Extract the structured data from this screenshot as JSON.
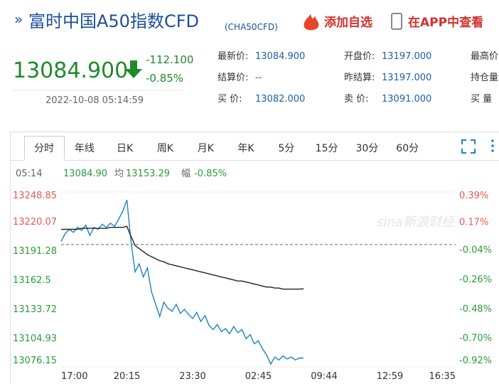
{
  "header": {
    "title": "富时中国A50指数CFD",
    "code": "(CHA50CFD)",
    "actions": [
      "添加自选",
      "在APP中查看"
    ]
  },
  "quote": {
    "price": "13084.900",
    "change": "-112.100",
    "change_pct": "-0.85%",
    "time": "2022-10-08 05:14:59",
    "rows": [
      [
        "最新价:",
        "13084.900",
        "开盘价:",
        "13197.000",
        "最高价"
      ],
      [
        "结算价:",
        "--",
        "昨结算:",
        "13197.000",
        "持仓量"
      ],
      [
        "买 价:",
        "13082.000",
        "卖 价:",
        "13091.000",
        "买 量"
      ]
    ]
  },
  "tabs": [
    "分时",
    "年线",
    "日K",
    "周K",
    "月K",
    "年K",
    "5分",
    "15分",
    "30分",
    "60分"
  ],
  "info": {
    "time": "05:14",
    "price": "13084.90",
    "avg_label": "均",
    "avg": "13153.29",
    "amp_label": "幅",
    "pct": "-0.85%"
  },
  "chart_data": {
    "type": "line",
    "watermark": "sina新浪财经",
    "x": [
      0,
      1,
      2,
      3,
      4,
      5,
      6,
      7,
      8,
      9,
      10,
      11,
      12,
      13,
      14,
      15,
      16,
      17,
      18,
      19,
      20,
      21,
      22,
      23,
      24,
      25,
      26,
      27,
      28,
      29,
      30,
      31,
      32,
      33,
      34,
      35,
      36,
      37,
      38,
      39,
      40,
      41,
      42,
      43,
      44,
      45,
      46,
      47,
      48,
      49,
      50,
      51,
      52,
      53,
      54,
      55,
      56,
      57,
      58,
      59
    ],
    "xlim": [
      0,
      96
    ],
    "xticks": [
      {
        "value": 0,
        "label": "17:00"
      },
      {
        "value": 16,
        "label": "20:15"
      },
      {
        "value": 32,
        "label": "23:30"
      },
      {
        "value": 48,
        "label": "02:45"
      },
      {
        "value": 64,
        "label": "09:44"
      },
      {
        "value": 80,
        "label": "12:59"
      },
      {
        "value": 96,
        "label": "16:35"
      }
    ],
    "ylim": [
      13076.15,
      13248.85
    ],
    "yticks": [
      13248.85,
      13220.07,
      13191.28,
      13162.5,
      13133.72,
      13104.93,
      13076.15
    ],
    "y2lim": [
      -0.92,
      0.39
    ],
    "y2ticks": [
      {
        "value": 0.39,
        "label": "0.39%"
      },
      {
        "value": 0.17,
        "label": "0.17%"
      },
      {
        "value": -0.04,
        "label": "-0.04%"
      },
      {
        "value": -0.26,
        "label": "-0.26%"
      },
      {
        "value": -0.48,
        "label": "-0.48%"
      },
      {
        "value": -0.7,
        "label": "-0.70%"
      },
      {
        "value": -0.92,
        "label": "-0.92%"
      }
    ],
    "baseline": 13197,
    "series": [
      {
        "color": "#1c84c6",
        "values": [
          13200,
          13208,
          13212,
          13209,
          13214,
          13211,
          13216,
          13206,
          13214,
          13212,
          13217,
          13214,
          13218,
          13215,
          13222,
          13230,
          13241,
          13200,
          13170,
          13178,
          13165,
          13174,
          13150,
          13138,
          13126,
          13140,
          13134,
          13131,
          13138,
          13129,
          13133,
          13128,
          13124,
          13130,
          13121,
          13127,
          13117,
          13113,
          13118,
          13111,
          13114,
          13109,
          13116,
          13110,
          13113,
          13104,
          13108,
          13099,
          13102,
          13094,
          13088,
          13079,
          13086,
          13083,
          13087,
          13084,
          13086,
          13083,
          13085,
          13084.9
        ]
      },
      {
        "color": "#222222",
        "values": [
          13212,
          13212,
          13212,
          13212,
          13212,
          13213,
          13213,
          13213,
          13213,
          13213,
          13213,
          13213,
          13214,
          13214,
          13214,
          13214,
          13215,
          13205,
          13196,
          13193,
          13190,
          13187,
          13185,
          13183,
          13181,
          13180,
          13178,
          13177,
          13176,
          13175,
          13174,
          13173,
          13172,
          13171,
          13170,
          13169,
          13168,
          13167,
          13166,
          13165,
          13164,
          13163,
          13162,
          13161,
          13161,
          13160,
          13159,
          13158,
          13157,
          13156,
          13155,
          13155,
          13154,
          13154,
          13153,
          13153,
          13153,
          13153,
          13153,
          13153.29
        ]
      }
    ]
  }
}
